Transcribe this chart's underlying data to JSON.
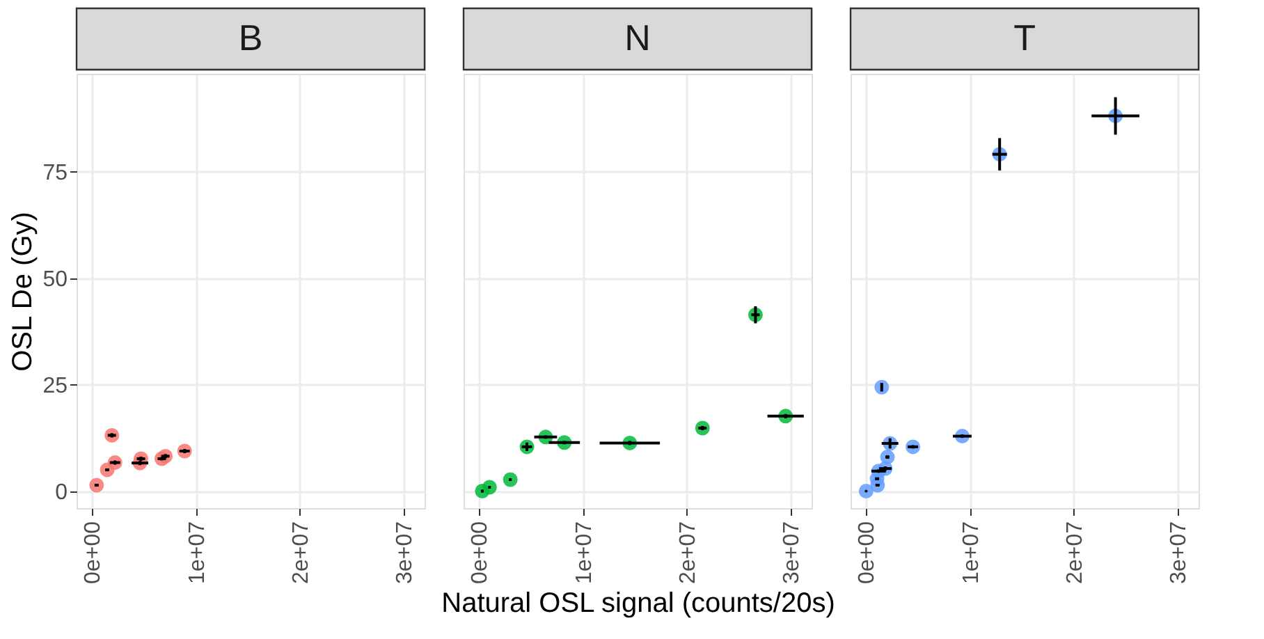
{
  "chart_data": [
    {
      "type": "scatter",
      "title": "B",
      "ylabel": "OSL De (Gy)",
      "xlim": [
        -1500000,
        32000000
      ],
      "ylim": [
        -4,
        98
      ],
      "grid": true,
      "marker": "circle",
      "xticks": [
        {
          "value": 0,
          "label": "0e+00"
        },
        {
          "value": 10000000,
          "label": "1e+07"
        },
        {
          "value": 20000000,
          "label": "2e+07"
        },
        {
          "value": 30000000,
          "label": "3e+07"
        }
      ],
      "yticks": [
        0,
        25,
        50,
        75
      ],
      "series": [
        {
          "color": "#f8766d",
          "x": [
            430000,
            1450000,
            1900000,
            2200000,
            4600000,
            4700000,
            6700000,
            7050000,
            8900000
          ],
          "values": [
            1.4,
            5.0,
            13.1,
            6.7,
            6.6,
            7.6,
            7.6,
            8.2,
            9.4
          ],
          "errors": [
            0.3,
            0.3,
            0.5,
            0.5,
            0.5,
            0.5,
            0.4,
            0.5,
            0.5
          ],
          "xerrors": [
            200000,
            200000,
            400000,
            500000,
            800000,
            400000,
            400000,
            400000,
            500000
          ]
        }
      ]
    },
    {
      "type": "scatter",
      "title": "N",
      "xlabel": "Natural OSL signal (counts/20s)",
      "xlim": [
        -1500000,
        32000000
      ],
      "ylim": [
        -4,
        98
      ],
      "grid": true,
      "marker": "circle",
      "tick_labels": "x",
      "xticks": [
        {
          "value": 0,
          "label": "0e+00"
        },
        {
          "value": 10000000,
          "label": "1e+07"
        },
        {
          "value": 20000000,
          "label": "2e+07"
        },
        {
          "value": 30000000,
          "label": "3e+07"
        }
      ],
      "yticks": [
        0,
        25,
        50,
        75
      ],
      "series": [
        {
          "color": "#00ba38",
          "x": [
            300000,
            1000000,
            3000000,
            4600000,
            6400000,
            8200000,
            14500000,
            21500000,
            26600000,
            29500000
          ],
          "values": [
            0,
            0.9,
            2.7,
            10.4,
            12.7,
            11.4,
            11.3,
            14.8,
            41.4,
            17.6
          ],
          "errors": [
            0.3,
            0.3,
            0.3,
            1.0,
            0.4,
            0.4,
            0.5,
            0.5,
            2.0,
            0.5
          ],
          "xerrors": [
            100000,
            100000,
            100000,
            500000,
            1100000,
            1500000,
            2900000,
            400000,
            400000,
            1750000
          ]
        }
      ]
    },
    {
      "type": "scatter",
      "title": "T",
      "xlim": [
        -1500000,
        32000000
      ],
      "ylim": [
        -4,
        98
      ],
      "grid": true,
      "marker": "circle",
      "tick_labels": "x",
      "xticks": [
        {
          "value": 0,
          "label": "0e+00"
        },
        {
          "value": 10000000,
          "label": "1e+07"
        },
        {
          "value": 20000000,
          "label": "2e+07"
        },
        {
          "value": 30000000,
          "label": "3e+07"
        }
      ],
      "yticks": [
        0,
        25,
        50,
        75
      ],
      "series": [
        {
          "color": "#619cff",
          "x": [
            0,
            1100000,
            1050000,
            1200000,
            1850000,
            2050000,
            2300000,
            1500000,
            4500000,
            9250000,
            12850000,
            24000000
          ],
          "values": [
            0,
            1.4,
            2.9,
            4.7,
            5.3,
            8.0,
            11.2,
            24.4,
            10.4,
            12.9,
            79.1,
            88.1
          ],
          "errors": [
            0.2,
            0.3,
            0.3,
            0.4,
            0.5,
            0.4,
            1.2,
            1.0,
            0.4,
            0.4,
            3.8,
            4.4
          ],
          "xerrors": [
            50000,
            200000,
            200000,
            700000,
            600000,
            200000,
            800000,
            100000,
            500000,
            900000,
            700000,
            2300000
          ]
        }
      ]
    }
  ]
}
